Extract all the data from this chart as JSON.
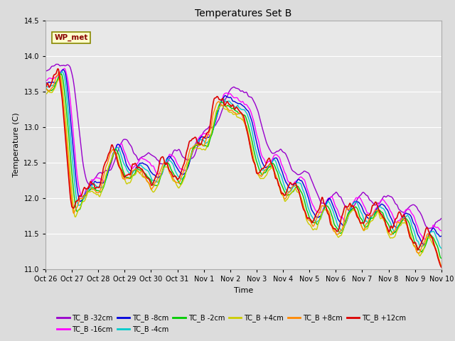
{
  "title": "Temperatures Set B",
  "xlabel": "Time",
  "ylabel": "Temperature (C)",
  "ylim": [
    11.0,
    14.5
  ],
  "yticks": [
    11.0,
    11.5,
    12.0,
    12.5,
    13.0,
    13.5,
    14.0,
    14.5
  ],
  "xtick_labels": [
    "Oct 26",
    "Oct 27",
    "Oct 28",
    "Oct 29",
    "Oct 30",
    "Oct 31",
    "Nov 1",
    "Nov 2",
    "Nov 3",
    "Nov 4",
    "Nov 5",
    "Nov 6",
    "Nov 7",
    "Nov 8",
    "Nov 9",
    "Nov 10"
  ],
  "background_color": "#dcdcdc",
  "axes_background": "#dcdcdc",
  "plot_bg_color": "#e8e8e8",
  "series_colors": {
    "TC_B -32cm": "#9900cc",
    "TC_B -16cm": "#ff00ff",
    "TC_B -8cm": "#0000dd",
    "TC_B -4cm": "#00cccc",
    "TC_B -2cm": "#00cc00",
    "TC_B +4cm": "#cccc00",
    "TC_B +8cm": "#ff8800",
    "TC_B +12cm": "#dd0000"
  },
  "wp_met_box_color": "#ffffcc",
  "wp_met_text_color": "#880000",
  "wp_met_border_color": "#888800"
}
